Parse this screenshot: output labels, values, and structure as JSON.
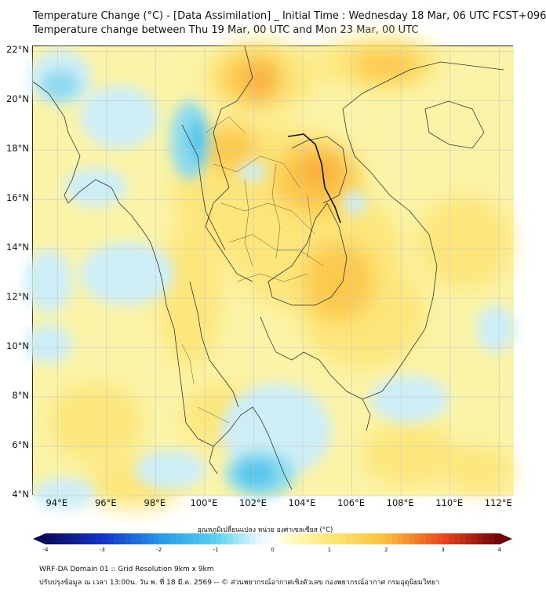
{
  "header": {
    "title_line1": "Temperature Change (°C) - [Data Assimilation] _ Initial Time : Wednesday 18 Mar, 06 UTC FCST+096",
    "title_line2": "Temperature change between Thu 19 Mar, 00 UTC and Mon 23 Mar, 00 UTC"
  },
  "map": {
    "lat_labels": [
      "22°N",
      "20°N",
      "18°N",
      "16°N",
      "14°N",
      "12°N",
      "10°N",
      "8°N",
      "6°N",
      "4°N"
    ],
    "lon_labels": [
      "94°E",
      "96°E",
      "98°E",
      "100°E",
      "102°E",
      "104°E",
      "106°E",
      "108°E",
      "110°E",
      "112°E"
    ],
    "lat_range": [
      4,
      22.2
    ],
    "lon_range": [
      93,
      112.6
    ],
    "colors": {
      "background_field": "#fbf4a8",
      "warm_light": "#fde67a",
      "warm_medium": "#fcc94e",
      "warm_strong": "#f8a93a",
      "cool_light": "#cdeef7",
      "cool_medium": "#8edcf0",
      "cool_strong": "#56c7ec",
      "border_lines": "#333333",
      "grid_lines": "#c8c8c8"
    }
  },
  "colorbar": {
    "title": "อุณหภูมิเปลี่ยนแปลง หน่วย องศาเซลเซียส (°C)",
    "labels": [
      "-4",
      "-3",
      "-2",
      "-1",
      "0",
      "1",
      "2",
      "3",
      "4"
    ],
    "range": [
      -4,
      4
    ]
  },
  "footer": {
    "line1": "WRF-DA Domain 01 :: Grid Resolution 9km x 9km",
    "line2": "ปรับปรุงข้อมูล ณ เวลา 13:00น. วัน พ. ที่ 18 มี.ค. 2569 -- © ส่วนพยากรณ์อากาศเชิงตัวเลข กองพยากรณ์อากาศ กรมอุตุนิยมวิทยา"
  }
}
